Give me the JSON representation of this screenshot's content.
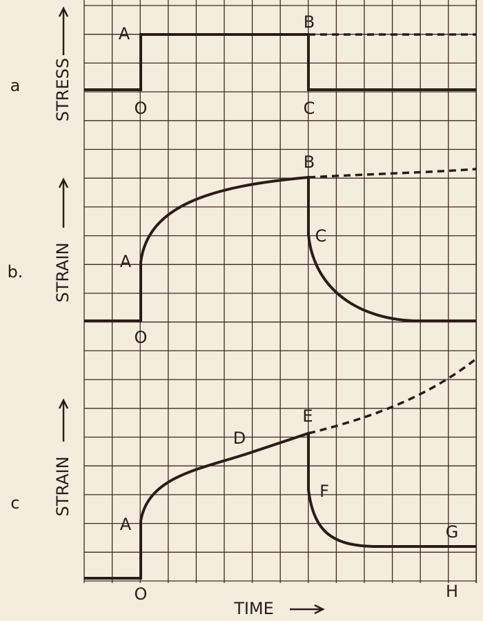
{
  "panels": [
    {
      "label": "a",
      "y_axis_label": "STRESS",
      "points": [
        "A",
        "B",
        "O",
        "C"
      ]
    },
    {
      "label": "b.",
      "y_axis_label": "STRAIN",
      "points": [
        "B",
        "C",
        "A",
        "O"
      ]
    },
    {
      "label": "c",
      "y_axis_label": "STRAIN",
      "points": [
        "E",
        "D",
        "F",
        "A",
        "G",
        "O",
        "H"
      ]
    }
  ],
  "x_axis_label": "TIME"
}
